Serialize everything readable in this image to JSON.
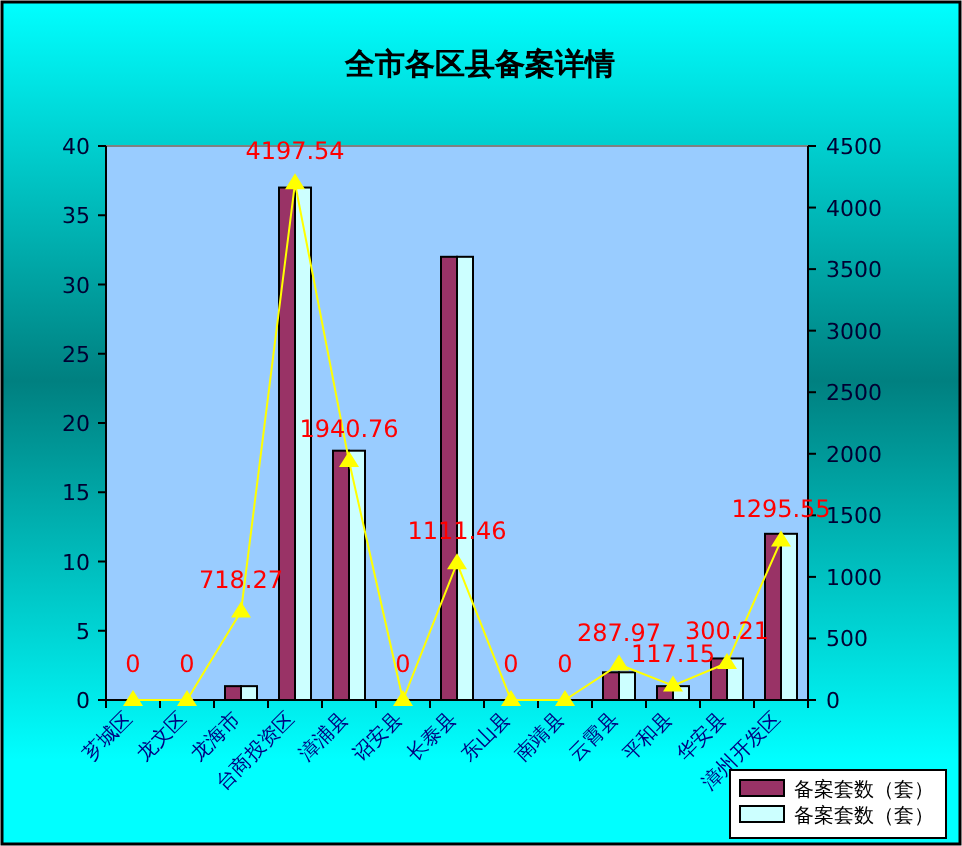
{
  "chart_data": {
    "type": "bar",
    "title": "全市各区县备案详情",
    "categories": [
      "芗城区",
      "龙文区",
      "龙海市",
      "台商投资区",
      "漳浦县",
      "诏安县",
      "长泰县",
      "东山县",
      "南靖县",
      "云霄县",
      "平和县",
      "华安县",
      "漳州开发区"
    ],
    "series": [
      {
        "name": "备案套数（套）",
        "color": "#993366",
        "values": [
          0,
          0,
          1,
          37,
          18,
          0,
          32,
          0,
          0,
          2,
          1,
          3,
          12
        ]
      },
      {
        "name": "备案套数（套）",
        "color": "#ccffff",
        "values": [
          0,
          0,
          1,
          37,
          18,
          0,
          32,
          0,
          0,
          2,
          1,
          3,
          12
        ]
      },
      {
        "type": "line",
        "axis": "y2",
        "color": "#ffff00",
        "values": [
          0,
          0,
          718.27,
          4197.54,
          1940.76,
          0,
          1111.46,
          0,
          0,
          287.97,
          117.15,
          300.21,
          1295.55
        ],
        "value_labels": [
          "0",
          "0",
          "718.27",
          "4197.54",
          "1940.76",
          "0",
          "1111.46",
          "0",
          "0",
          "287.97",
          "117.15",
          "300.21",
          "1295.55"
        ]
      }
    ],
    "ylim": [
      0,
      40
    ],
    "yticks": [
      0,
      5,
      10,
      15,
      20,
      25,
      30,
      35,
      40
    ],
    "y2lim": [
      0,
      4500
    ],
    "y2ticks": [
      0,
      500,
      1000,
      1500,
      2000,
      2500,
      3000,
      3500,
      4000,
      4500
    ],
    "marker": "triangle",
    "legend": "bottom right",
    "grid": false
  }
}
